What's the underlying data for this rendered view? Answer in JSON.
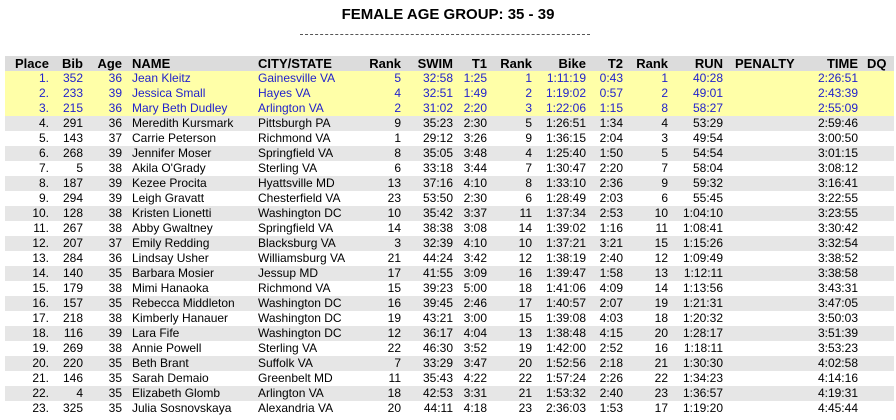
{
  "title": "FEMALE AGE GROUP: 35 - 39",
  "table": {
    "headers": [
      "Place",
      "Bib",
      "Age",
      "NAME",
      "CITY/STATE",
      "Rank",
      "SWIM",
      "T1",
      "Rank",
      "Bike",
      "T2",
      "Rank",
      "RUN",
      "PENALTY",
      "TIME",
      "DQ"
    ],
    "rows": [
      [
        "1.",
        "352",
        "36",
        "Jean Kleitz",
        "Gainesville VA",
        "5",
        "32:58",
        "1:25",
        "1",
        "1:11:19",
        "0:43",
        "1",
        "40:28",
        "2:26:51"
      ],
      [
        "2.",
        "233",
        "39",
        "Jessica Small",
        "Hayes VA",
        "4",
        "32:51",
        "1:49",
        "2",
        "1:19:02",
        "0:57",
        "2",
        "49:01",
        "2:43:39"
      ],
      [
        "3.",
        "215",
        "36",
        "Mary Beth Dudley",
        "Arlington VA",
        "2",
        "31:02",
        "2:20",
        "3",
        "1:22:06",
        "1:15",
        "8",
        "58:27",
        "2:55:09"
      ],
      [
        "4.",
        "291",
        "36",
        "Meredith Kursmark",
        "Pittsburgh PA",
        "9",
        "35:23",
        "2:30",
        "5",
        "1:26:51",
        "1:34",
        "4",
        "53:29",
        "2:59:46"
      ],
      [
        "5.",
        "143",
        "37",
        "Carrie Peterson",
        "Richmond VA",
        "1",
        "29:12",
        "3:26",
        "9",
        "1:36:15",
        "2:04",
        "3",
        "49:54",
        "3:00:50"
      ],
      [
        "6.",
        "268",
        "39",
        "Jennifer Moser",
        "Springfield VA",
        "8",
        "35:05",
        "3:48",
        "4",
        "1:25:40",
        "1:50",
        "5",
        "54:54",
        "3:01:15"
      ],
      [
        "7.",
        "5",
        "38",
        "Akila O'Grady",
        "Sterling VA",
        "6",
        "33:18",
        "3:44",
        "7",
        "1:30:47",
        "2:20",
        "7",
        "58:04",
        "3:08:12"
      ],
      [
        "8.",
        "187",
        "39",
        "Kezee Procita",
        "Hyattsville MD",
        "13",
        "37:16",
        "4:10",
        "8",
        "1:33:10",
        "2:36",
        "9",
        "59:32",
        "3:16:41"
      ],
      [
        "9.",
        "294",
        "39",
        "Leigh Gravatt",
        "Chesterfield VA",
        "23",
        "53:50",
        "2:30",
        "6",
        "1:28:49",
        "2:03",
        "6",
        "55:45",
        "3:22:55"
      ],
      [
        "10.",
        "128",
        "38",
        "Kristen Lionetti",
        "Washington DC",
        "10",
        "35:42",
        "3:37",
        "11",
        "1:37:34",
        "2:53",
        "10",
        "1:04:10",
        "3:23:55"
      ],
      [
        "11.",
        "267",
        "38",
        "Abby Gwaltney",
        "Springfield VA",
        "14",
        "38:38",
        "3:08",
        "14",
        "1:39:02",
        "1:16",
        "11",
        "1:08:41",
        "3:30:42"
      ],
      [
        "12.",
        "207",
        "37",
        "Emily Redding",
        "Blacksburg VA",
        "3",
        "32:39",
        "4:10",
        "10",
        "1:37:21",
        "3:21",
        "15",
        "1:15:26",
        "3:32:54"
      ],
      [
        "13.",
        "284",
        "36",
        "Lindsay Usher",
        "Williamsburg VA",
        "21",
        "44:24",
        "3:42",
        "12",
        "1:38:19",
        "2:40",
        "12",
        "1:09:49",
        "3:38:52"
      ],
      [
        "14.",
        "140",
        "35",
        "Barbara Mosier",
        "Jessup MD",
        "17",
        "41:55",
        "3:09",
        "16",
        "1:39:47",
        "1:58",
        "13",
        "1:12:11",
        "3:38:58"
      ],
      [
        "15.",
        "179",
        "38",
        "Mimi Hanaoka",
        "Richmond VA",
        "15",
        "39:23",
        "5:00",
        "18",
        "1:41:06",
        "4:09",
        "14",
        "1:13:56",
        "3:43:31"
      ],
      [
        "16.",
        "157",
        "35",
        "Rebecca Middleton",
        "Washington DC",
        "16",
        "39:45",
        "2:46",
        "17",
        "1:40:57",
        "2:07",
        "19",
        "1:21:31",
        "3:47:05"
      ],
      [
        "17.",
        "218",
        "38",
        "Kimberly Hanauer",
        "Washington DC",
        "19",
        "43:21",
        "3:00",
        "15",
        "1:39:08",
        "4:03",
        "18",
        "1:20:32",
        "3:50:03"
      ],
      [
        "18.",
        "116",
        "39",
        "Lara Fife",
        "Washington DC",
        "12",
        "36:17",
        "4:04",
        "13",
        "1:38:48",
        "4:15",
        "20",
        "1:28:17",
        "3:51:39"
      ],
      [
        "19.",
        "269",
        "38",
        "Annie Powell",
        "Sterling VA",
        "22",
        "46:30",
        "3:52",
        "19",
        "1:42:00",
        "2:52",
        "16",
        "1:18:11",
        "3:53:23"
      ],
      [
        "20.",
        "220",
        "35",
        "Beth Brant",
        "Suffolk VA",
        "7",
        "33:29",
        "3:47",
        "20",
        "1:52:56",
        "2:18",
        "21",
        "1:30:30",
        "4:02:58"
      ],
      [
        "21.",
        "146",
        "35",
        "Sarah Demaio",
        "Greenbelt MD",
        "11",
        "35:43",
        "4:22",
        "22",
        "1:57:24",
        "2:26",
        "22",
        "1:34:23",
        "4:14:16"
      ],
      [
        "22.",
        "4",
        "35",
        "Elizabeth Glomb",
        "Arlington VA",
        "18",
        "42:53",
        "3:31",
        "21",
        "1:53:32",
        "2:40",
        "23",
        "1:36:57",
        "4:19:31"
      ],
      [
        "23.",
        "325",
        "35",
        "Julia Sosnovskaya",
        "Alexandria VA",
        "20",
        "44:11",
        "4:18",
        "23",
        "2:36:03",
        "1:53",
        "17",
        "1:19:20",
        "4:45:44"
      ]
    ]
  }
}
